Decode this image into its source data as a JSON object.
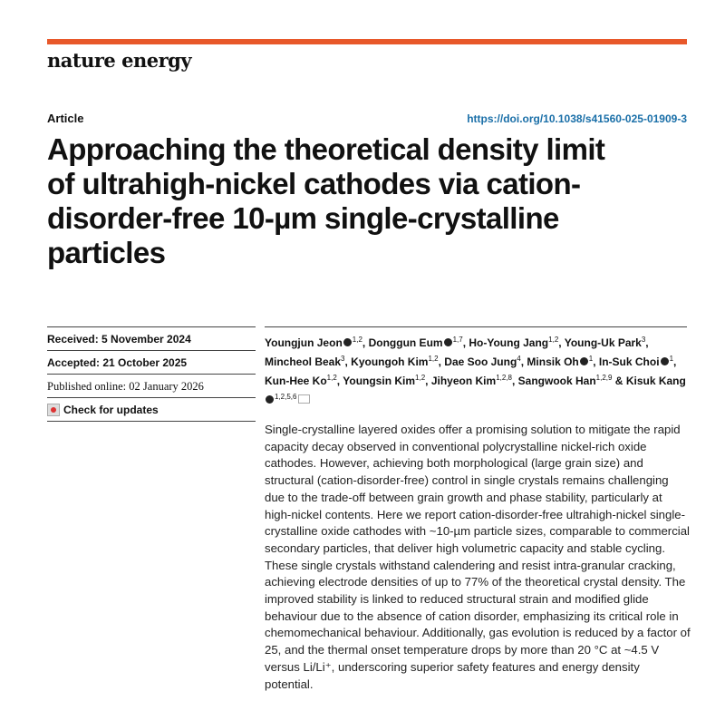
{
  "header": {
    "journal": "nature energy",
    "accent": "#e8582a"
  },
  "article": {
    "type": "Article",
    "doi": "https://doi.org/10.1038/s41560-025-01909-3",
    "title": "Approaching the theoretical density limit of ultrahigh-nickel cathodes via cation-disorder-free 10-µm single-crystalline particles"
  },
  "dates": {
    "received": "Received: 5 November 2024",
    "accepted": "Accepted: 21 October 2025",
    "published": "Published online: 02 January 2026",
    "check_updates": "Check for updates"
  },
  "authors": [
    {
      "name": "Youngjun Jeon",
      "orcid": true,
      "aff": "1,2"
    },
    {
      "name": "Donggun Eum",
      "orcid": true,
      "aff": "1,7"
    },
    {
      "name": "Ho-Young Jang",
      "aff": "1,2"
    },
    {
      "name": "Young-Uk Park",
      "aff": "3"
    },
    {
      "name": "Mincheol Beak",
      "aff": "3"
    },
    {
      "name": "Kyoungoh Kim",
      "aff": "1,2"
    },
    {
      "name": "Dae Soo Jung",
      "aff": "4"
    },
    {
      "name": "Minsik Oh",
      "orcid": true,
      "aff": "1"
    },
    {
      "name": "In-Suk Choi",
      "orcid": true,
      "aff": "1"
    },
    {
      "name": "Kun-Hee Ko",
      "aff": "1,2"
    },
    {
      "name": "Youngsin Kim",
      "aff": "1,2"
    },
    {
      "name": "Jihyeon Kim",
      "aff": "1,2,8"
    },
    {
      "name": "Sangwook Han",
      "aff": "1,2,9"
    },
    {
      "name": "Kisuk Kang",
      "orcid": true,
      "aff": "1,2,5,6",
      "email": true
    }
  ],
  "abstract": "Single-crystalline layered oxides offer a promising solution to mitigate the rapid capacity decay observed in conventional polycrystalline nickel-rich oxide cathodes. However, achieving both morphological (large grain size) and structural (cation-disorder-free) control in single crystals remains challenging due to the trade-off between grain growth and phase stability, particularly at high-nickel contents. Here we report cation-disorder-free ultrahigh-nickel single-crystalline oxide cathodes with ~10-µm particle sizes, comparable to commercial secondary particles, that deliver high volumetric capacity and stable cycling. These single crystals withstand calendering and resist intra-granular cracking, achieving electrode densities of up to 77% of the theoretical crystal density. The improved stability is linked to reduced structural strain and modified glide behaviour due to the absence of cation disorder, emphasizing its critical role in chemomechanical behaviour. Additionally, gas evolution is reduced by a factor of 25, and the thermal onset temperature drops by more than 20 °C at ~4.5 V versus Li/Li⁺, underscoring superior safety features and energy density potential."
}
